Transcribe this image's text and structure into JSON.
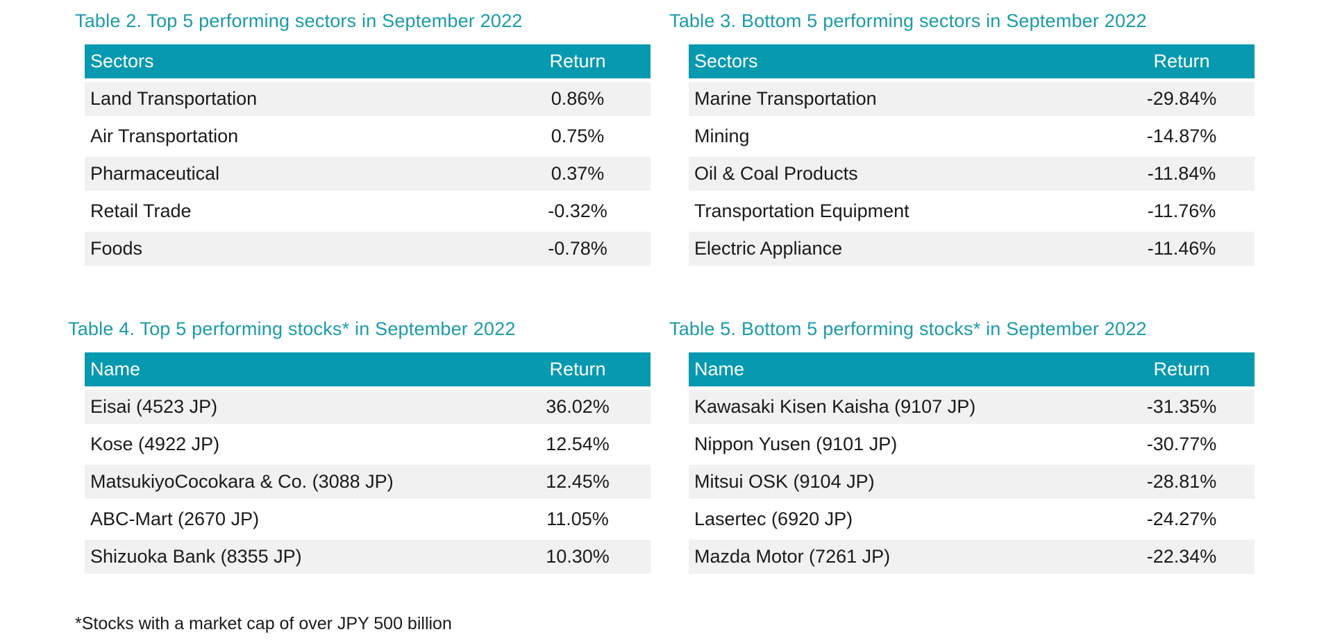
{
  "colors": {
    "accent": "#0699b0",
    "title": "#1a9aaa",
    "row_shade": "#f1f1f1"
  },
  "tables": [
    {
      "title": "Table 2. Top 5 performing sectors in September 2022",
      "headers": [
        "Sectors",
        "Return"
      ],
      "rows": [
        [
          "Land Transportation",
          "0.86%"
        ],
        [
          "Air Transportation",
          "0.75%"
        ],
        [
          "Pharmaceutical",
          "0.37%"
        ],
        [
          "Retail Trade",
          "-0.32%"
        ],
        [
          "Foods",
          "-0.78%"
        ]
      ]
    },
    {
      "title": "Table 3. Bottom 5 performing sectors in September 2022",
      "headers": [
        "Sectors",
        "Return"
      ],
      "rows": [
        [
          "Marine Transportation",
          "-29.84%"
        ],
        [
          "Mining",
          "-14.87%"
        ],
        [
          "Oil & Coal Products",
          "-11.84%"
        ],
        [
          "Transportation Equipment",
          "-11.76%"
        ],
        [
          "Electric Appliance",
          "-11.46%"
        ]
      ]
    },
    {
      "title": "Table 4. Top 5 performing stocks* in September 2022",
      "headers": [
        "Name",
        "Return"
      ],
      "rows": [
        [
          "Eisai (4523 JP)",
          "36.02%"
        ],
        [
          "Kose (4922 JP)",
          "12.54%"
        ],
        [
          "MatsukiyoCocokara & Co. (3088 JP)",
          "12.45%"
        ],
        [
          "ABC-Mart (2670 JP)",
          "11.05%"
        ],
        [
          "Shizuoka Bank (8355 JP)",
          "10.30%"
        ]
      ]
    },
    {
      "title": "Table 5. Bottom 5 performing stocks* in September 2022",
      "headers": [
        "Name",
        "Return"
      ],
      "rows": [
        [
          "Kawasaki Kisen Kaisha (9107 JP)",
          "-31.35%"
        ],
        [
          "Nippon Yusen (9101 JP)",
          "-30.77%"
        ],
        [
          "Mitsui OSK (9104 JP)",
          "-28.81%"
        ],
        [
          "Lasertec (6920 JP)",
          "-24.27%"
        ],
        [
          "Mazda Motor (7261 JP)",
          "-22.34%"
        ]
      ]
    }
  ],
  "footnote": "*Stocks with a market cap of over JPY 500 billion"
}
